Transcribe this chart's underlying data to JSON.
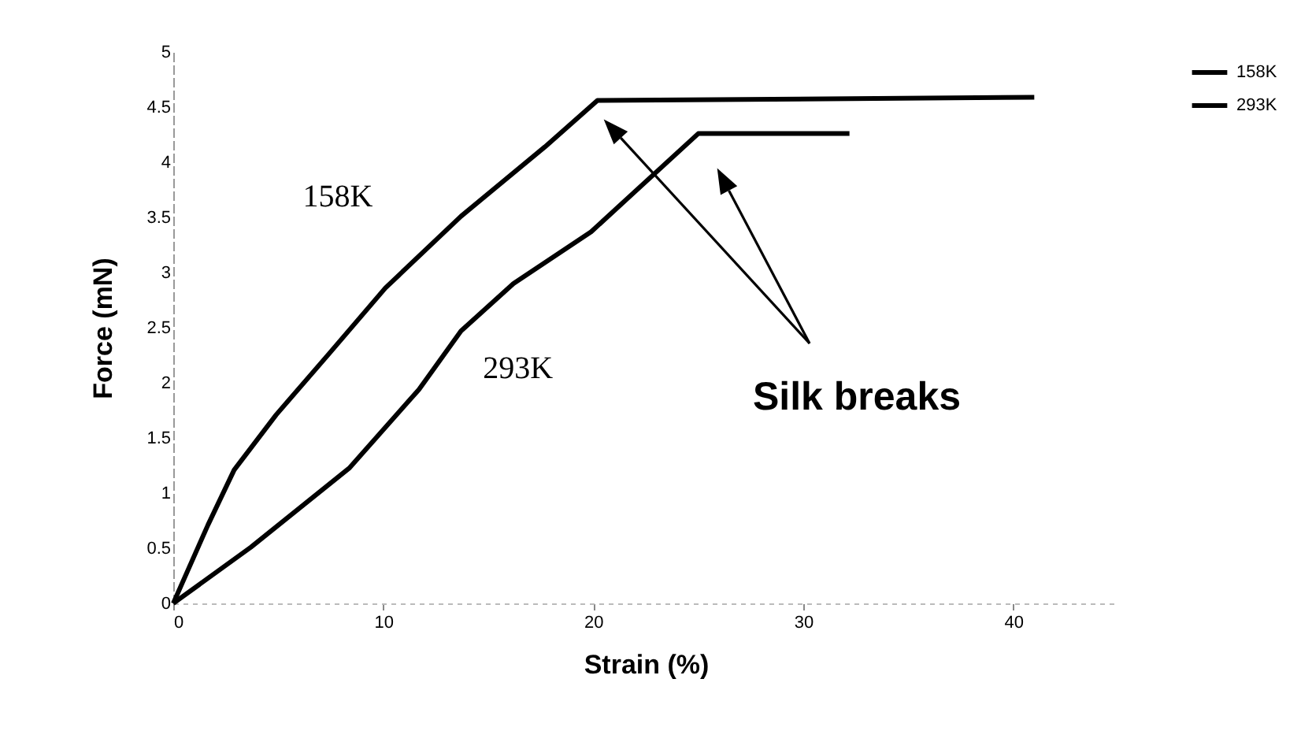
{
  "chart_data": {
    "type": "line",
    "xlabel": "Strain (%)",
    "ylabel": "Force (mN)",
    "xlim": [
      0,
      45
    ],
    "xticks": [
      0,
      10,
      20,
      30,
      40
    ],
    "ylim": [
      0,
      5
    ],
    "yticks": [
      0,
      0.5,
      1,
      1.5,
      2,
      2.5,
      3,
      3.5,
      4,
      4.5,
      5
    ],
    "legend": "right",
    "annotations": [
      "Silk breaks"
    ],
    "series": [
      {
        "name": "158K",
        "color": "#000000",
        "x": [
          0,
          1.65,
          2.9,
          4.9,
          7.4,
          10.1,
          13.7,
          17.7,
          20.2,
          41
        ],
        "values": [
          0,
          0.71,
          1.21,
          1.71,
          2.26,
          2.86,
          3.51,
          4.14,
          4.56,
          4.59
        ]
      },
      {
        "name": "293K",
        "color": "#000000",
        "x": [
          0,
          3.7,
          8.4,
          11.7,
          13.7,
          16.2,
          19.9,
          25,
          32.2
        ],
        "values": [
          0,
          0.51,
          1.23,
          1.94,
          2.47,
          2.9,
          3.37,
          4.26,
          4.26
        ]
      }
    ]
  }
}
